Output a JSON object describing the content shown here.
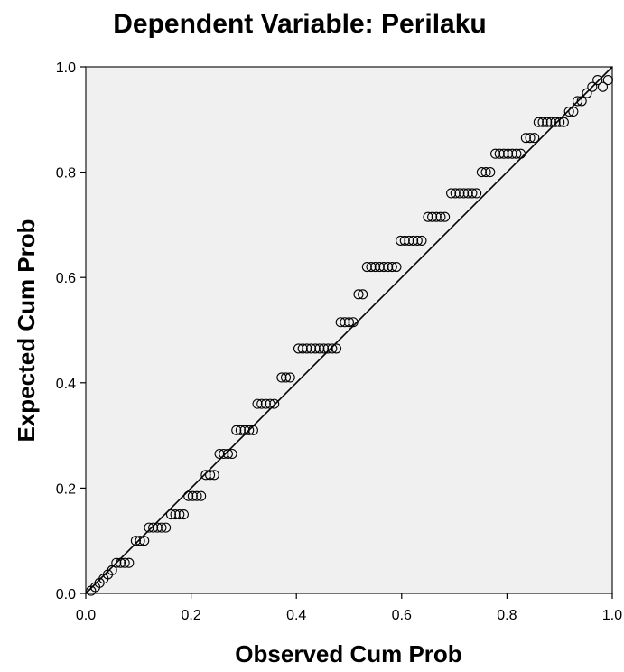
{
  "chart_data": {
    "type": "scatter",
    "title": "Dependent Variable: Perilaku",
    "xlabel": "Observed Cum Prob",
    "ylabel": "Expected Cum Prob",
    "xlim": [
      0,
      1
    ],
    "ylim": [
      0,
      1
    ],
    "grid": false,
    "x_ticks": [
      "0.0",
      "0.2",
      "0.4",
      "0.6",
      "0.8",
      "1.0"
    ],
    "y_ticks": [
      "0.0",
      "0.2",
      "0.4",
      "0.6",
      "0.8",
      "1.0"
    ],
    "x_tick_values": [
      0,
      0.2,
      0.4,
      0.6,
      0.8,
      1.0
    ],
    "y_tick_values": [
      0,
      0.2,
      0.4,
      0.6,
      0.8,
      1.0
    ],
    "reference_line": {
      "x": [
        0,
        1
      ],
      "y": [
        0,
        1
      ]
    },
    "colors": {
      "plot_background": "#f0f0f0",
      "marker": "#000000"
    },
    "points": [
      {
        "x": 0.01,
        "y": 0.005
      },
      {
        "x": 0.018,
        "y": 0.012
      },
      {
        "x": 0.026,
        "y": 0.02
      },
      {
        "x": 0.034,
        "y": 0.028
      },
      {
        "x": 0.042,
        "y": 0.036
      },
      {
        "x": 0.05,
        "y": 0.044
      },
      {
        "x": 0.058,
        "y": 0.058
      },
      {
        "x": 0.066,
        "y": 0.058
      },
      {
        "x": 0.074,
        "y": 0.058
      },
      {
        "x": 0.082,
        "y": 0.058
      },
      {
        "x": 0.095,
        "y": 0.1
      },
      {
        "x": 0.103,
        "y": 0.1
      },
      {
        "x": 0.111,
        "y": 0.1
      },
      {
        "x": 0.12,
        "y": 0.125
      },
      {
        "x": 0.128,
        "y": 0.125
      },
      {
        "x": 0.136,
        "y": 0.125
      },
      {
        "x": 0.144,
        "y": 0.125
      },
      {
        "x": 0.152,
        "y": 0.125
      },
      {
        "x": 0.162,
        "y": 0.15
      },
      {
        "x": 0.17,
        "y": 0.15
      },
      {
        "x": 0.178,
        "y": 0.15
      },
      {
        "x": 0.186,
        "y": 0.15
      },
      {
        "x": 0.195,
        "y": 0.185
      },
      {
        "x": 0.203,
        "y": 0.185
      },
      {
        "x": 0.211,
        "y": 0.185
      },
      {
        "x": 0.219,
        "y": 0.185
      },
      {
        "x": 0.228,
        "y": 0.225
      },
      {
        "x": 0.236,
        "y": 0.225
      },
      {
        "x": 0.244,
        "y": 0.225
      },
      {
        "x": 0.254,
        "y": 0.265
      },
      {
        "x": 0.262,
        "y": 0.265
      },
      {
        "x": 0.27,
        "y": 0.265
      },
      {
        "x": 0.278,
        "y": 0.265
      },
      {
        "x": 0.286,
        "y": 0.31
      },
      {
        "x": 0.294,
        "y": 0.31
      },
      {
        "x": 0.302,
        "y": 0.31
      },
      {
        "x": 0.31,
        "y": 0.31
      },
      {
        "x": 0.318,
        "y": 0.31
      },
      {
        "x": 0.326,
        "y": 0.36
      },
      {
        "x": 0.334,
        "y": 0.36
      },
      {
        "x": 0.342,
        "y": 0.36
      },
      {
        "x": 0.35,
        "y": 0.36
      },
      {
        "x": 0.358,
        "y": 0.36
      },
      {
        "x": 0.372,
        "y": 0.41
      },
      {
        "x": 0.38,
        "y": 0.41
      },
      {
        "x": 0.388,
        "y": 0.41
      },
      {
        "x": 0.404,
        "y": 0.465
      },
      {
        "x": 0.412,
        "y": 0.465
      },
      {
        "x": 0.42,
        "y": 0.465
      },
      {
        "x": 0.428,
        "y": 0.465
      },
      {
        "x": 0.436,
        "y": 0.465
      },
      {
        "x": 0.444,
        "y": 0.465
      },
      {
        "x": 0.452,
        "y": 0.465
      },
      {
        "x": 0.46,
        "y": 0.465
      },
      {
        "x": 0.468,
        "y": 0.465
      },
      {
        "x": 0.476,
        "y": 0.465
      },
      {
        "x": 0.484,
        "y": 0.515
      },
      {
        "x": 0.492,
        "y": 0.515
      },
      {
        "x": 0.5,
        "y": 0.515
      },
      {
        "x": 0.508,
        "y": 0.515
      },
      {
        "x": 0.518,
        "y": 0.568
      },
      {
        "x": 0.526,
        "y": 0.568
      },
      {
        "x": 0.534,
        "y": 0.62
      },
      {
        "x": 0.542,
        "y": 0.62
      },
      {
        "x": 0.55,
        "y": 0.62
      },
      {
        "x": 0.558,
        "y": 0.62
      },
      {
        "x": 0.566,
        "y": 0.62
      },
      {
        "x": 0.574,
        "y": 0.62
      },
      {
        "x": 0.582,
        "y": 0.62
      },
      {
        "x": 0.59,
        "y": 0.62
      },
      {
        "x": 0.598,
        "y": 0.67
      },
      {
        "x": 0.606,
        "y": 0.67
      },
      {
        "x": 0.614,
        "y": 0.67
      },
      {
        "x": 0.622,
        "y": 0.67
      },
      {
        "x": 0.63,
        "y": 0.67
      },
      {
        "x": 0.638,
        "y": 0.67
      },
      {
        "x": 0.65,
        "y": 0.715
      },
      {
        "x": 0.658,
        "y": 0.715
      },
      {
        "x": 0.666,
        "y": 0.715
      },
      {
        "x": 0.674,
        "y": 0.715
      },
      {
        "x": 0.682,
        "y": 0.715
      },
      {
        "x": 0.694,
        "y": 0.76
      },
      {
        "x": 0.702,
        "y": 0.76
      },
      {
        "x": 0.71,
        "y": 0.76
      },
      {
        "x": 0.718,
        "y": 0.76
      },
      {
        "x": 0.726,
        "y": 0.76
      },
      {
        "x": 0.734,
        "y": 0.76
      },
      {
        "x": 0.742,
        "y": 0.76
      },
      {
        "x": 0.752,
        "y": 0.8
      },
      {
        "x": 0.76,
        "y": 0.8
      },
      {
        "x": 0.768,
        "y": 0.8
      },
      {
        "x": 0.778,
        "y": 0.835
      },
      {
        "x": 0.786,
        "y": 0.835
      },
      {
        "x": 0.794,
        "y": 0.835
      },
      {
        "x": 0.802,
        "y": 0.835
      },
      {
        "x": 0.81,
        "y": 0.835
      },
      {
        "x": 0.818,
        "y": 0.835
      },
      {
        "x": 0.826,
        "y": 0.835
      },
      {
        "x": 0.836,
        "y": 0.865
      },
      {
        "x": 0.844,
        "y": 0.865
      },
      {
        "x": 0.852,
        "y": 0.865
      },
      {
        "x": 0.86,
        "y": 0.895
      },
      {
        "x": 0.868,
        "y": 0.895
      },
      {
        "x": 0.876,
        "y": 0.895
      },
      {
        "x": 0.884,
        "y": 0.895
      },
      {
        "x": 0.892,
        "y": 0.895
      },
      {
        "x": 0.9,
        "y": 0.895
      },
      {
        "x": 0.908,
        "y": 0.895
      },
      {
        "x": 0.918,
        "y": 0.915
      },
      {
        "x": 0.926,
        "y": 0.915
      },
      {
        "x": 0.934,
        "y": 0.935
      },
      {
        "x": 0.942,
        "y": 0.935
      },
      {
        "x": 0.952,
        "y": 0.95
      },
      {
        "x": 0.962,
        "y": 0.962
      },
      {
        "x": 0.972,
        "y": 0.975
      },
      {
        "x": 0.982,
        "y": 0.962
      },
      {
        "x": 0.992,
        "y": 0.975
      }
    ]
  }
}
